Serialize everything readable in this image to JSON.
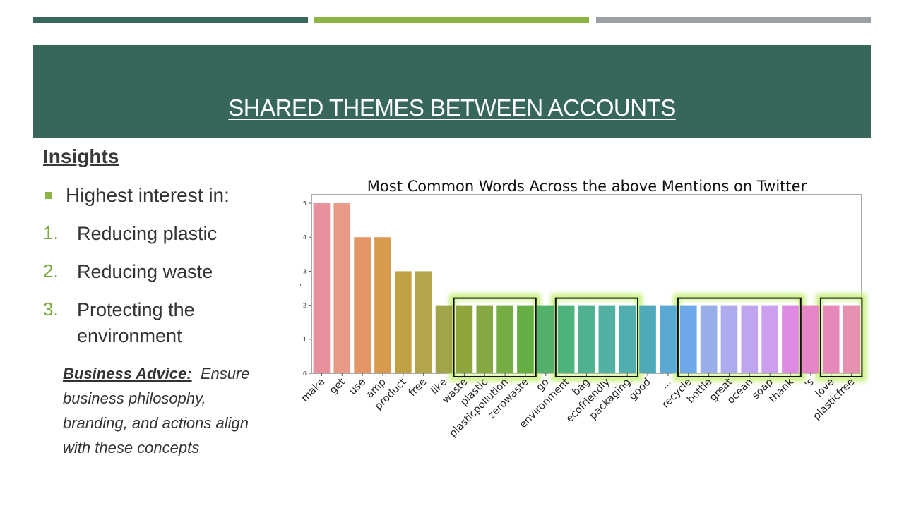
{
  "colors": {
    "accent_dark_green": "#37665a",
    "accent_light_green": "#8db543",
    "accent_gray": "#9aa0a6",
    "banner": "#37665a",
    "number_green": "#7aa83a",
    "highlight_glow": "#c6f07a"
  },
  "slide": {
    "title": "SHARED THEMES BETWEEN ACCOUNTS",
    "insights_heading": "Insights",
    "interest_line": "Highest interest in:",
    "items": [
      {
        "num": "1.",
        "text": "Reducing plastic"
      },
      {
        "num": "2.",
        "text": "Reducing waste"
      },
      {
        "num": "3.",
        "text": "Protecting the environment"
      }
    ],
    "advice_label": "Business Advice:",
    "advice_text": "Ensure business philosophy, branding, and actions align with these concepts"
  },
  "chart_data": {
    "type": "bar",
    "title": "Most Common Words Across the above Mentions on Twitter",
    "ylabel": "0",
    "xlabel": "",
    "ylim": [
      0,
      5.25
    ],
    "yticks": [
      0,
      1,
      2,
      3,
      4,
      5
    ],
    "categories": [
      "make",
      "get",
      "use",
      "amp",
      "product",
      "free",
      "like",
      "waste",
      "plastic",
      "plasticpollution",
      "zerowaste",
      "go",
      "environment",
      "bag",
      "ecofriendly",
      "packaging",
      "good",
      "...",
      "recycle",
      "bottle",
      "great",
      "ocean",
      "soap",
      "thank",
      "'s",
      "love",
      "plasticfree"
    ],
    "values": [
      5,
      5,
      4,
      4,
      3,
      3,
      2,
      2,
      2,
      2,
      2,
      2,
      2,
      2,
      2,
      2,
      2,
      2,
      2,
      2,
      2,
      2,
      2,
      2,
      2,
      2,
      2
    ],
    "bar_colors": [
      "#e8909c",
      "#e89a86",
      "#e39565",
      "#d79a4f",
      "#c1a044",
      "#b3a54b",
      "#a1a448",
      "#8ea53d",
      "#85a842",
      "#75ac44",
      "#66ae43",
      "#52b06b",
      "#4db37a",
      "#4fb190",
      "#51b0a1",
      "#52aeae",
      "#4eaab8",
      "#5aa9d4",
      "#6fa8e8",
      "#99ade9",
      "#aeaaee",
      "#bfa5ef",
      "#cda0ef",
      "#de8ae0",
      "#e686c6",
      "#e689b9",
      "#e68fb1"
    ],
    "highlight_groups": [
      [
        "waste",
        "zerowaste"
      ],
      [
        "environment",
        "packaging"
      ],
      [
        "recycle",
        "thank"
      ],
      [
        "love",
        "plasticfree"
      ]
    ]
  }
}
